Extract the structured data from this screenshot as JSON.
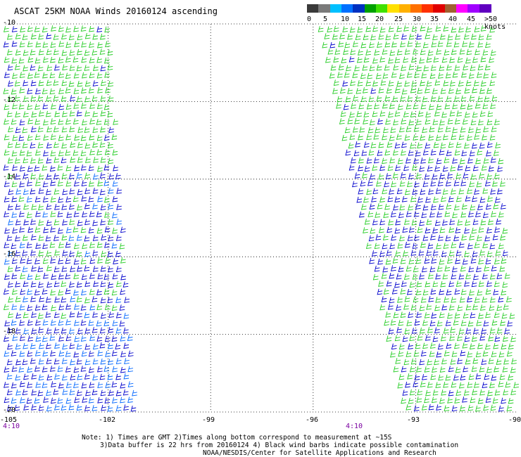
{
  "title": "ASCAT 25KM NOAA Winds 20160124 ascending",
  "colorbar": {
    "labels": [
      "0",
      "5",
      "10",
      "15",
      "20",
      "25",
      "30",
      "35",
      "40",
      "45",
      ">50 knots"
    ],
    "colors": [
      "#3a3a3a",
      "#7a7a7a",
      "#00c0ff",
      "#0070ff",
      "#0030c0",
      "#00a000",
      "#40e000",
      "#ffe000",
      "#ffb000",
      "#ff7000",
      "#ff3000",
      "#e00000",
      "#a06030",
      "#ff00ff",
      "#a000ff",
      "#6000c0"
    ]
  },
  "axes": {
    "lon_ticks": [
      "-105",
      "-102",
      "-99",
      "-96",
      "-93",
      "-90"
    ],
    "lat_ticks": [
      "-10",
      "-12",
      "-14",
      "-16",
      "-18",
      "-20"
    ],
    "lon_range": [
      -105,
      -90
    ],
    "lat_range": [
      -20,
      -10
    ]
  },
  "swath_times": [
    "4:10",
    "4:10"
  ],
  "notes": [
    "Note: 1) Times are GMT 2)Times along bottom correspond to measurement at ~15S",
    "3)Data buffer is 22 hrs from 20160124 4) Black wind barbs indicate possible contamination",
    "NOAA/NESDIS/Center for Satellite Applications and Research"
  ],
  "barb_colors": {
    "green": "#22cc22",
    "blue": "#0000cc",
    "light_blue": "#0066ff"
  },
  "chart_data": {
    "type": "wind-barb-map",
    "swaths": [
      {
        "name": "",
        "lon_west_top": -105,
        "lon_east_top": -102.0,
        "lon_west_bottom": -105,
        "lon_east_bottom": -101.2,
        "lat_top": -10,
        "lat_bottom": -20
      },
      {
        "name": "",
        "lon_west_top": -95.8,
        "lon_east_top": -90.8,
        "lon_west_bottom": -93.3,
        "lon_east_bottom": -90,
        "lat_top": -10,
        "lat_bottom": -20
      }
    ],
    "speed_bands_knots": [
      {
        "lat_from": -10,
        "lat_to": -13.5,
        "speed": "15-20",
        "color": "green"
      },
      {
        "lat_from": -13.5,
        "lat_to": -17.5,
        "speed": "10-15",
        "color": "blue"
      },
      {
        "lat_from": -17.5,
        "lat_to": -20,
        "speed": "10-15",
        "color": "blue"
      }
    ]
  }
}
